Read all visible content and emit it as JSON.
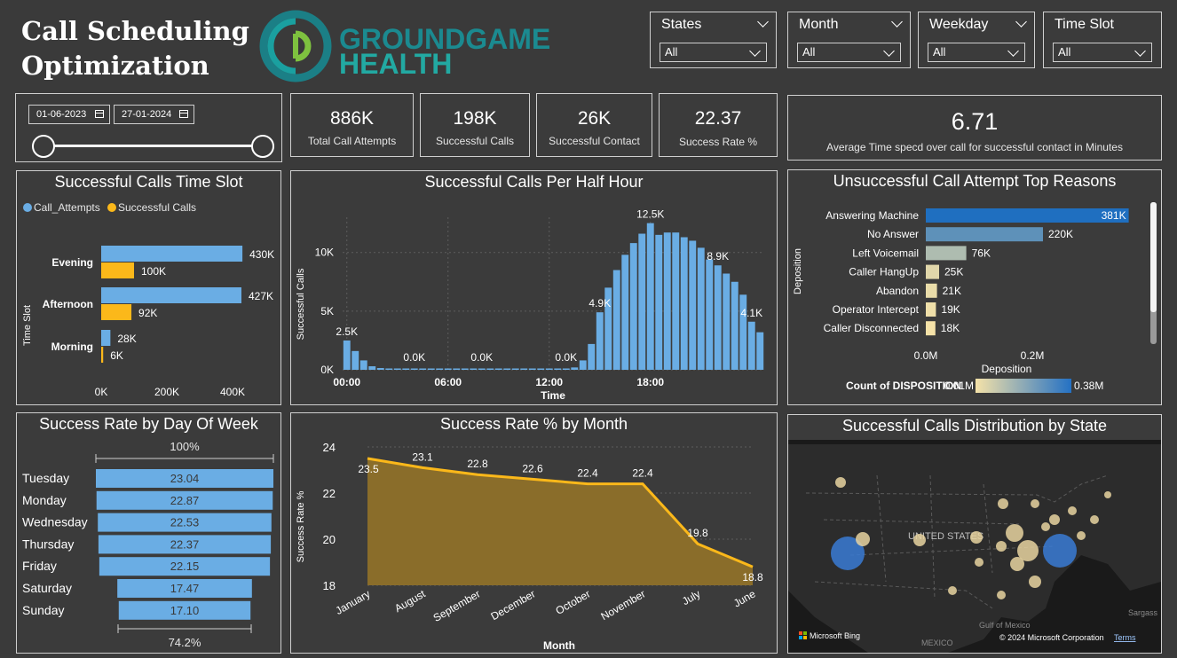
{
  "header": {
    "title_line1": "Call Scheduling",
    "title_line2": "Optimization",
    "logo_text_top": "GROUNDGAME",
    "logo_text_bottom": "HEALTH"
  },
  "slicers": [
    {
      "label": "States",
      "value": "All"
    },
    {
      "label": "Month",
      "value": "All"
    },
    {
      "label": "Weekday",
      "value": "All"
    },
    {
      "label": "Time Slot",
      "value": "All"
    }
  ],
  "date_range": {
    "start": "01-06-2023",
    "end": "27-01-2024"
  },
  "kpis": [
    {
      "value": "886K",
      "label": "Total Call Attempts"
    },
    {
      "value": "198K",
      "label": "Successful Calls"
    },
    {
      "value": "26K",
      "label": "Successful Contact"
    },
    {
      "value": "22.37",
      "label": "Success Rate %"
    }
  ],
  "avg_kpi": {
    "value": "6.71",
    "label": "Average Time specd over call for successful contact in Minutes"
  },
  "colors": {
    "attempts": "#6aade4",
    "success": "#fbb81a",
    "bg": "#3a3a3a",
    "area": "#8a6d2a",
    "line": "#fbb81a",
    "bar_dark": "#1f6fc0"
  },
  "chart_data": [
    {
      "id": "timeslot",
      "type": "bar",
      "title": "Successful Calls Time Slot",
      "ylabel": "Time Slot",
      "legend": [
        "Call_Attempts",
        "Successful Calls"
      ],
      "categories": [
        "Evening",
        "Afternoon",
        "Morning"
      ],
      "series": [
        {
          "name": "Call_Attempts",
          "values": [
            430,
            427,
            28
          ],
          "labels": [
            "430K",
            "427K",
            "28K"
          ]
        },
        {
          "name": "Successful Calls",
          "values": [
            100,
            92,
            6
          ],
          "labels": [
            "100K",
            "92K",
            "6K"
          ]
        }
      ],
      "xlim": [
        0,
        500
      ],
      "xticks": [
        "0K",
        "200K",
        "400K"
      ],
      "xtick_values": [
        0,
        200,
        400
      ]
    },
    {
      "id": "halfhour",
      "type": "bar",
      "title": "Successful Calls Per Half Hour",
      "xlabel": "Time",
      "ylabel": "Successful Calls",
      "ylim": [
        0,
        13000
      ],
      "yticks": [
        "0K",
        "5K",
        "10K"
      ],
      "ytick_values": [
        0,
        5000,
        10000
      ],
      "xticks": [
        "00:00",
        "06:00",
        "12:00",
        "18:00"
      ],
      "xtick_index": [
        0,
        12,
        24,
        36
      ],
      "values": [
        2500,
        1600,
        800,
        300,
        150,
        60,
        0,
        0,
        0,
        0,
        0,
        0,
        0,
        0,
        0,
        0,
        0,
        0,
        0,
        0,
        0,
        0,
        0,
        0,
        0,
        0,
        0,
        200,
        800,
        2200,
        4900,
        7000,
        8500,
        9800,
        10800,
        11600,
        12500,
        11500,
        11700,
        11700,
        11300,
        11000,
        10400,
        9400,
        8900,
        8200,
        7500,
        6400,
        4100,
        3200
      ],
      "data_labels": [
        {
          "i": 0,
          "t": "2.5K"
        },
        {
          "i": 8,
          "t": "0.0K"
        },
        {
          "i": 16,
          "t": "0.0K"
        },
        {
          "i": 26,
          "t": "0.0K"
        },
        {
          "i": 30,
          "t": "4.9K"
        },
        {
          "i": 36,
          "t": "12.5K"
        },
        {
          "i": 44,
          "t": "8.9K"
        },
        {
          "i": 48,
          "t": "4.1K"
        }
      ]
    },
    {
      "id": "reasons",
      "type": "bar",
      "title": "Unsuccessful Call Attempt Top Reasons",
      "ylabel": "Deposition",
      "xlabel": "Deposition",
      "categories": [
        "Answering Machine",
        "No Answer",
        "Left Voicemail",
        "Caller HangUp",
        "Abandon",
        "Operator Intercept",
        "Caller Disconnected"
      ],
      "values": [
        381,
        220,
        76,
        25,
        21,
        19,
        18
      ],
      "labels": [
        "381K",
        "220K",
        "76K",
        "25K",
        "21K",
        "19K",
        "18K"
      ],
      "xlim": [
        0,
        400
      ],
      "xticks": [
        "0.0M",
        "0.2M"
      ],
      "xtick_values": [
        0,
        200
      ],
      "color_legend": {
        "title": "Count of DISPOSITION",
        "min": "0.01M",
        "max": "0.38M"
      }
    },
    {
      "id": "dayofweek",
      "type": "bar",
      "title": "Success Rate by Day Of Week",
      "top_label": "100%",
      "bottom_label": "74.2%",
      "categories": [
        "Tuesday",
        "Monday",
        "Wednesday",
        "Thursday",
        "Friday",
        "Saturday",
        "Sunday"
      ],
      "values": [
        23.04,
        22.87,
        22.53,
        22.37,
        22.15,
        17.47,
        17.1
      ],
      "labels": [
        "23.04",
        "22.87",
        "22.53",
        "22.37",
        "22.15",
        "17.47",
        "17.10"
      ]
    },
    {
      "id": "month",
      "type": "area",
      "title": "Success Rate % by Month",
      "xlabel": "Month",
      "ylabel": "Success Rate %",
      "categories": [
        "January",
        "August",
        "September",
        "December",
        "October",
        "November",
        "July",
        "June"
      ],
      "values": [
        23.5,
        23.1,
        22.8,
        22.6,
        22.4,
        22.4,
        19.8,
        18.8
      ],
      "labels": [
        "23.5",
        "23.1",
        "22.8",
        "22.6",
        "22.4",
        "22.4",
        "19.8",
        "18.8"
      ],
      "ylim": [
        18,
        24
      ],
      "yticks": [
        "18",
        "20",
        "22",
        "24"
      ],
      "ytick_values": [
        18,
        20,
        22,
        24
      ]
    }
  ],
  "map": {
    "title": "Successful Calls Distribution by State",
    "country_label": "UNITED STATES",
    "gulf_label": "Gulf of Mexico",
    "mexico_label": "MEXICO",
    "sargasso_label": "Sargass",
    "bing": "Microsoft Bing",
    "copyright": "© 2024 Microsoft Corporation",
    "terms": "Terms"
  }
}
